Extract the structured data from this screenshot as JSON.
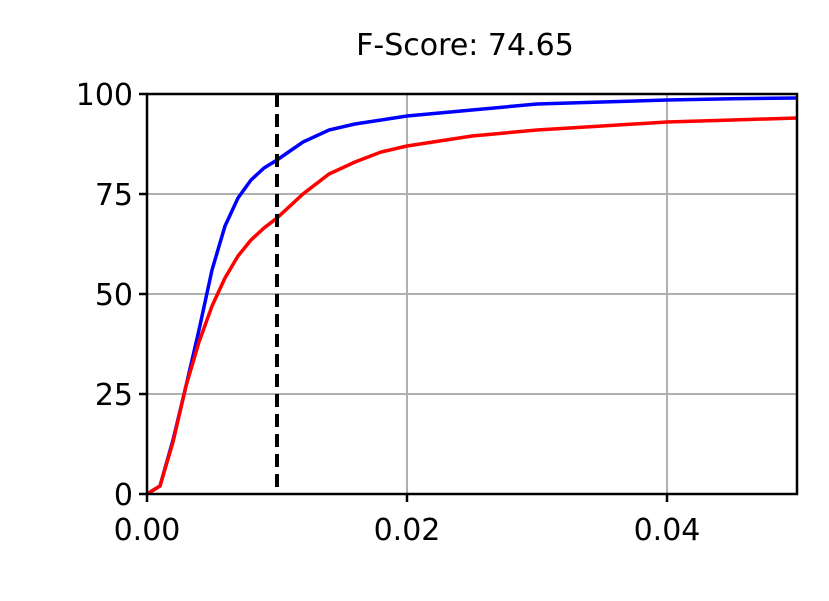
{
  "chart_data": {
    "type": "line",
    "title": "F-Score: 74.65",
    "x": [
      0,
      0.001,
      0.002,
      0.003,
      0.004,
      0.005,
      0.006,
      0.007,
      0.008,
      0.009,
      0.01,
      0.012,
      0.014,
      0.016,
      0.018,
      0.02,
      0.025,
      0.03,
      0.035,
      0.04,
      0.045,
      0.05
    ],
    "series": [
      {
        "color": "#0000ff",
        "values": [
          0,
          2,
          13.5,
          27,
          41,
          56,
          67,
          74,
          78.5,
          81.5,
          83.5,
          88,
          91,
          92.5,
          93.5,
          94.5,
          96,
          97.5,
          98,
          98.5,
          98.8,
          99
        ]
      },
      {
        "color": "#ff0000",
        "values": [
          0,
          2,
          13,
          27,
          38,
          47,
          54,
          59.5,
          63.5,
          66.5,
          69,
          75,
          80,
          83,
          85.5,
          87,
          89.5,
          91,
          92,
          93,
          93.5,
          94
        ]
      }
    ],
    "xlim": [
      0,
      0.05
    ],
    "xticks": [
      {
        "value": 0,
        "label": "0.00"
      },
      {
        "value": 0.02,
        "label": "0.02"
      },
      {
        "value": 0.04,
        "label": "0.04"
      }
    ],
    "ylim": [
      0,
      100
    ],
    "yticks": [
      0,
      25,
      50,
      75,
      100
    ],
    "grid": true,
    "vlines": [
      {
        "x": 0.01,
        "color": "#000000",
        "dashed": true
      }
    ]
  }
}
